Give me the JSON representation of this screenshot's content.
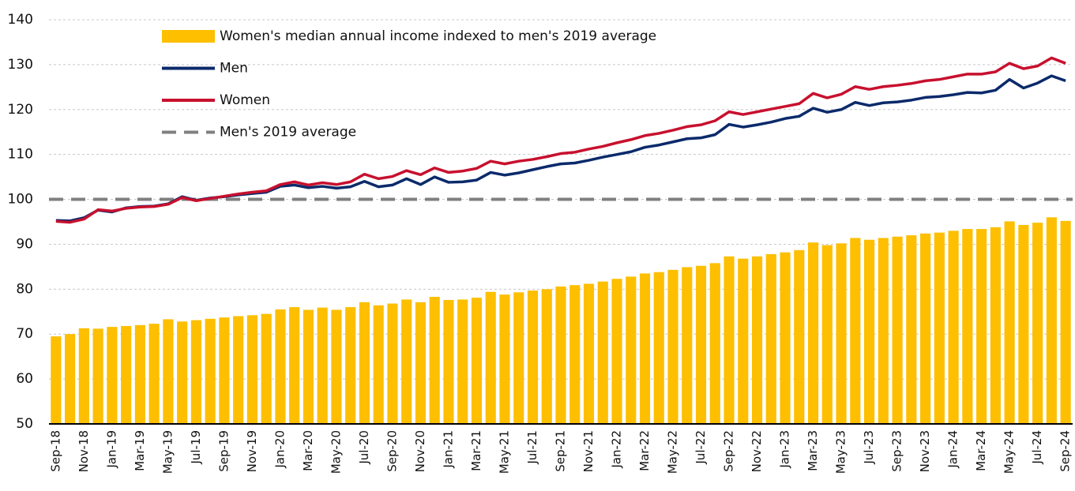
{
  "chart_data": {
    "type": "bar_line",
    "categories": [
      "Sep-18",
      null,
      "Nov-18",
      null,
      "Jan-19",
      null,
      "Mar-19",
      null,
      "May-19",
      null,
      "Jul-19",
      null,
      "Sep-19",
      null,
      "Nov-19",
      null,
      "Jan-20",
      null,
      "Mar-20",
      null,
      "May-20",
      null,
      "Jul-20",
      null,
      "Sep-20",
      null,
      "Nov-20",
      null,
      "Jan-21",
      null,
      "Mar-21",
      null,
      "May-21",
      null,
      "Jul-21",
      null,
      "Sep-21",
      null,
      "Nov-21",
      null,
      "Jan-22",
      null,
      "Mar-22",
      null,
      "May-22",
      null,
      "Jul-22",
      null,
      "Sep-22",
      null,
      "Nov-22",
      null,
      "Jan-23",
      null,
      "Mar-23",
      null,
      "May-23",
      null,
      "Jul-23",
      null,
      "Sep-23",
      null,
      "Nov-23",
      null,
      "Jan-24",
      null,
      "Mar-24",
      null,
      "May-24",
      null,
      "Jul-24",
      null,
      "Sep-24"
    ],
    "series": [
      {
        "name": "Women's median annual income indexed to men's 2019 average",
        "type": "bar",
        "color": "#fdbf00",
        "values": [
          69.5,
          70,
          71.3,
          71.2,
          71.6,
          71.8,
          72,
          72.3,
          73.3,
          72.8,
          73.1,
          73.4,
          73.7,
          74,
          74.2,
          74.5,
          75.5,
          76,
          75.4,
          75.9,
          75.4,
          76,
          77.1,
          76.4,
          76.8,
          77.7,
          77.1,
          78.3,
          77.6,
          77.7,
          78.1,
          79.4,
          78.8,
          79.3,
          79.7,
          80,
          80.6,
          80.9,
          81.2,
          81.7,
          82.3,
          82.8,
          83.5,
          83.8,
          84.3,
          84.9,
          85.2,
          85.8,
          87.3,
          86.8,
          87.3,
          87.8,
          88.2,
          88.7,
          90.4,
          89.8,
          90.2,
          91.4,
          91,
          91.4,
          91.7,
          92,
          92.4,
          92.6,
          93,
          93.4,
          93.4,
          93.8,
          95.1,
          94.3,
          94.8,
          96,
          95.2
        ]
      },
      {
        "name": "Men",
        "type": "line",
        "color": "#0b2a6b",
        "values": [
          95.3,
          95.2,
          95.9,
          97.6,
          97.2,
          98.1,
          98.4,
          98.5,
          99,
          100.6,
          99.8,
          100.3,
          100.6,
          101,
          101.3,
          101.6,
          102.9,
          103.2,
          102.6,
          102.9,
          102.5,
          102.8,
          104,
          102.8,
          103.2,
          104.6,
          103.3,
          105,
          103.8,
          103.9,
          104.3,
          106,
          105.4,
          105.9,
          106.6,
          107.3,
          107.9,
          108.1,
          108.7,
          109.4,
          110,
          110.6,
          111.6,
          112.1,
          112.8,
          113.5,
          113.7,
          114.4,
          116.7,
          116.1,
          116.6,
          117.2,
          118,
          118.5,
          120.3,
          119.4,
          120,
          121.6,
          120.9,
          121.5,
          121.7,
          122.1,
          122.7,
          122.9,
          123.3,
          123.8,
          123.7,
          124.3,
          126.7,
          124.8,
          125.9,
          127.5,
          126.4
        ]
      },
      {
        "name": "Women",
        "type": "line",
        "color": "#c8102e",
        "values": [
          95.1,
          94.9,
          95.6,
          97.7,
          97.4,
          98,
          98.3,
          98.4,
          98.9,
          100.4,
          99.7,
          100.2,
          100.7,
          101.2,
          101.6,
          101.9,
          103.3,
          103.9,
          103.2,
          103.7,
          103.3,
          103.9,
          105.6,
          104.6,
          105.1,
          106.4,
          105.5,
          107,
          106,
          106.3,
          106.9,
          108.5,
          107.9,
          108.5,
          108.9,
          109.5,
          110.2,
          110.5,
          111.2,
          111.8,
          112.6,
          113.3,
          114.2,
          114.7,
          115.4,
          116.2,
          116.6,
          117.5,
          119.5,
          118.9,
          119.5,
          120.1,
          120.7,
          121.3,
          123.6,
          122.6,
          123.4,
          125.1,
          124.5,
          125.1,
          125.4,
          125.8,
          126.4,
          126.7,
          127.3,
          127.9,
          127.9,
          128.4,
          130.3,
          129.1,
          129.7,
          131.5,
          130.3
        ]
      }
    ],
    "reference": {
      "name": "Men's 2019 average",
      "value": 100,
      "color": "#808080"
    },
    "ylim": [
      50,
      140
    ],
    "yticks": [
      50,
      60,
      70,
      80,
      90,
      100,
      110,
      120,
      130,
      140
    ],
    "grid": true,
    "legend": "top-left"
  }
}
